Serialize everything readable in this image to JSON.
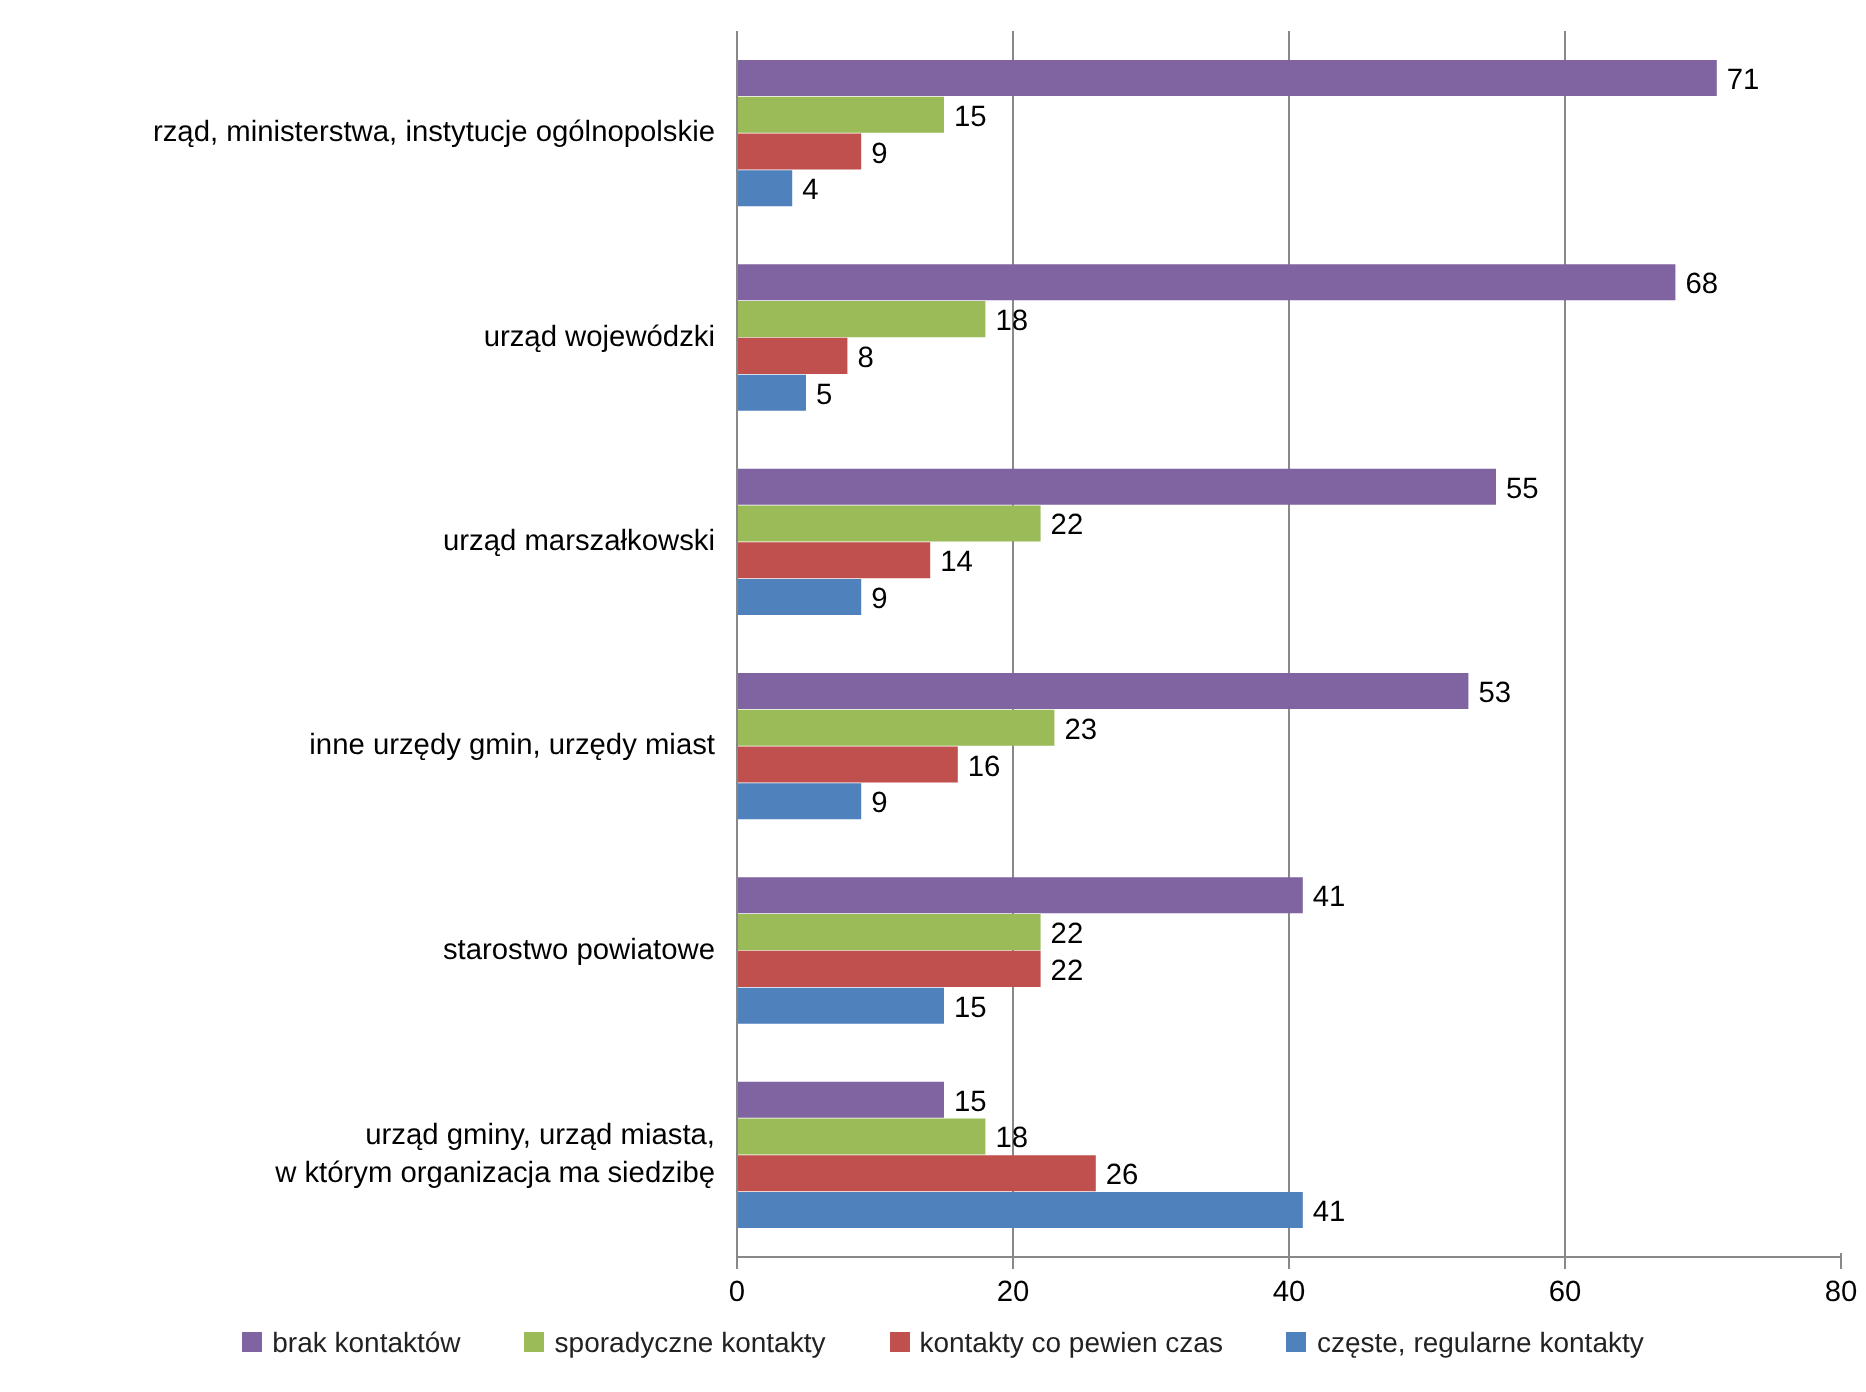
{
  "chart_data": {
    "type": "bar",
    "orientation": "horizontal",
    "categories": [
      "rząd, ministerstwa, instytucje ogólnopolskie",
      "urząd wojewódzki",
      "urząd marszałkowski",
      "inne urzędy gmin, urzędy miast",
      "starostwo powiatowe",
      "urząd gminy, urząd miasta,\nw którym organizacja ma siedzibę"
    ],
    "series": [
      {
        "name": "brak kontaktów",
        "color": "#8064a2",
        "values": [
          71,
          68,
          55,
          53,
          41,
          15
        ]
      },
      {
        "name": "sporadyczne kontakty",
        "color": "#9bbb59",
        "values": [
          15,
          18,
          22,
          23,
          22,
          18
        ]
      },
      {
        "name": "kontakty co pewien czas",
        "color": "#c0504d",
        "values": [
          9,
          8,
          14,
          16,
          22,
          26
        ]
      },
      {
        "name": "częste, regularne kontakty",
        "color": "#4f81bd",
        "values": [
          4,
          5,
          9,
          9,
          15,
          41
        ]
      }
    ],
    "xlim": [
      0,
      80
    ],
    "xticks": [
      0,
      20,
      40,
      60,
      80
    ],
    "grid": "x",
    "data_labels": true,
    "legend": "bottom"
  }
}
